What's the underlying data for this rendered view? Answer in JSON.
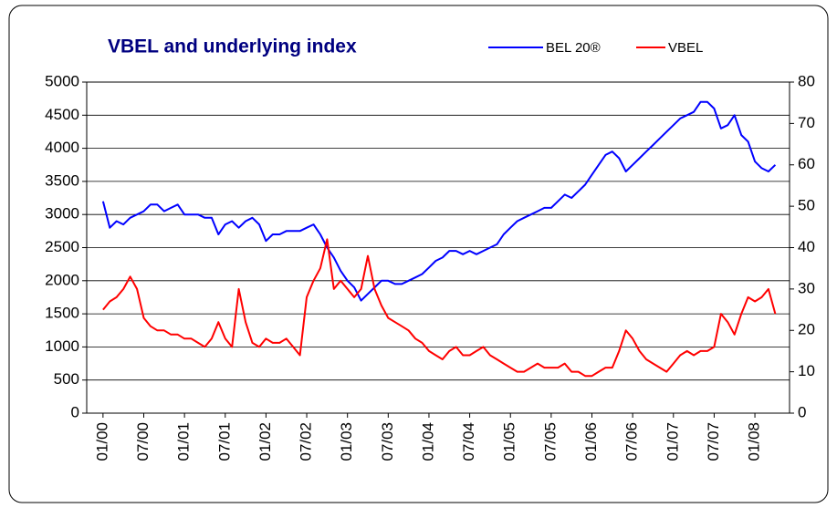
{
  "chart_data": {
    "type": "line",
    "title": "VBEL and underlying index",
    "legend": "top",
    "grid": true,
    "categories": [
      "01/00",
      null,
      null,
      null,
      null,
      null,
      "07/00",
      null,
      null,
      null,
      null,
      null,
      "01/01",
      null,
      null,
      null,
      null,
      null,
      "07/01",
      null,
      null,
      null,
      null,
      null,
      "01/02",
      null,
      null,
      null,
      null,
      null,
      "07/02",
      null,
      null,
      null,
      null,
      null,
      "01/03",
      null,
      null,
      null,
      null,
      null,
      "07/03",
      null,
      null,
      null,
      null,
      null,
      "01/04",
      null,
      null,
      null,
      null,
      null,
      "07/04",
      null,
      null,
      null,
      null,
      null,
      "01/05",
      null,
      null,
      null,
      null,
      null,
      "07/05",
      null,
      null,
      null,
      null,
      null,
      "01/06",
      null,
      null,
      null,
      null,
      null,
      "07/06",
      null,
      null,
      null,
      null,
      null,
      "01/07",
      null,
      null,
      null,
      null,
      null,
      "07/07",
      null,
      null,
      null,
      null,
      null,
      "01/08",
      null,
      null,
      null
    ],
    "ylim": [
      0,
      5000
    ],
    "yticks": [
      0,
      500,
      1000,
      1500,
      2000,
      2500,
      3000,
      3500,
      4000,
      4500,
      5000
    ],
    "y2lim": [
      0,
      80
    ],
    "y2ticks": [
      0,
      10,
      20,
      30,
      40,
      50,
      60,
      70,
      80
    ],
    "series": [
      {
        "name": "BEL 20®",
        "color": "#0000ff",
        "axis": "y",
        "values": [
          3200,
          2800,
          2900,
          2850,
          2950,
          3000,
          3050,
          3150,
          3150,
          3050,
          3100,
          3150,
          3000,
          3000,
          3000,
          2950,
          2950,
          2700,
          2850,
          2900,
          2800,
          2900,
          2950,
          2850,
          2600,
          2700,
          2700,
          2750,
          2750,
          2750,
          2800,
          2850,
          2700,
          2500,
          2350,
          2150,
          2000,
          1900,
          1700,
          1800,
          1900,
          2000,
          2000,
          1950,
          1950,
          2000,
          2050,
          2100,
          2200,
          2300,
          2350,
          2450,
          2450,
          2400,
          2450,
          2400,
          2450,
          2500,
          2550,
          2700,
          2800,
          2900,
          2950,
          3000,
          3050,
          3100,
          3100,
          3200,
          3300,
          3250,
          3350,
          3450,
          3600,
          3750,
          3900,
          3950,
          3850,
          3650,
          3750,
          3850,
          3950,
          4050,
          4150,
          4250,
          4350,
          4450,
          4500,
          4550,
          4700,
          4700,
          4600,
          4300,
          4350,
          4500,
          4200,
          4100,
          3800,
          3700,
          3650,
          3750
        ]
      },
      {
        "name": "VBEL",
        "color": "#ff0000",
        "axis": "y2",
        "values": [
          25,
          27,
          28,
          30,
          33,
          30,
          23,
          21,
          20,
          20,
          19,
          19,
          18,
          18,
          17,
          16,
          18,
          22,
          18,
          16,
          30,
          22,
          17,
          16,
          18,
          17,
          17,
          18,
          16,
          14,
          28,
          32,
          35,
          42,
          30,
          32,
          30,
          28,
          30,
          38,
          30,
          26,
          23,
          22,
          21,
          20,
          18,
          17,
          15,
          14,
          13,
          15,
          16,
          14,
          14,
          15,
          16,
          14,
          13,
          12,
          11,
          10,
          10,
          11,
          12,
          11,
          11,
          11,
          12,
          10,
          10,
          9,
          9,
          10,
          11,
          11,
          15,
          20,
          18,
          15,
          13,
          12,
          11,
          10,
          12,
          14,
          15,
          14,
          15,
          15,
          16,
          24,
          22,
          19,
          24,
          28,
          27,
          28,
          30,
          24
        ]
      }
    ]
  }
}
